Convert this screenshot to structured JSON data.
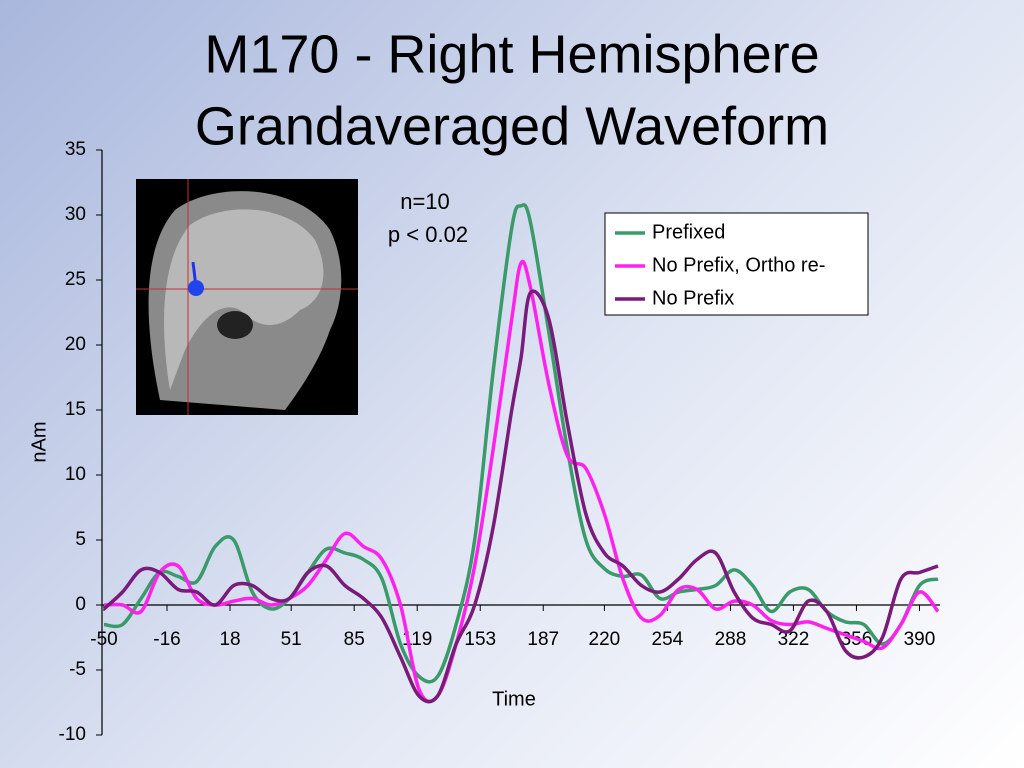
{
  "chart_data": {
    "type": "line",
    "title": [
      "M170 - Right Hemisphere",
      "Grandaveraged Waveform"
    ],
    "annotations": [
      "n=10",
      "p < 0.02"
    ],
    "x_label": "Time",
    "y_label": "nAm",
    "x": [
      -50,
      -40,
      -30,
      -20,
      -10,
      0,
      10,
      20,
      30,
      40,
      50,
      60,
      70,
      80,
      90,
      100,
      110,
      120,
      130,
      140,
      150,
      160,
      170,
      175,
      180,
      190,
      200,
      210,
      220,
      230,
      240,
      250,
      260,
      270,
      280,
      290,
      300,
      310,
      320,
      330,
      340,
      350,
      360,
      370,
      380,
      390,
      400
    ],
    "series": [
      {
        "name": "Prefixed",
        "color": "#3a9a6a",
        "values": [
          -1.5,
          -1.5,
          0.5,
          2.5,
          2.2,
          1.8,
          4.5,
          5,
          1,
          -0.3,
          0.5,
          2.5,
          4.3,
          4,
          3.5,
          2,
          -3,
          -5.5,
          -5.5,
          -1.5,
          5,
          18,
          29,
          30.7,
          29.5,
          21,
          12,
          5,
          2.8,
          2.2,
          2.3,
          0.5,
          1,
          1.2,
          1.5,
          2.7,
          1.5,
          -0.5,
          1,
          1.2,
          -0.5,
          -1.3,
          -1.5,
          -3,
          -1.5,
          1.5,
          2
        ]
      },
      {
        "name": "No Prefix, Ortho re-",
        "color": "#ff22ee",
        "values": [
          0,
          0,
          -0.5,
          2.5,
          3,
          0.5,
          0,
          0.3,
          0.5,
          0,
          0.5,
          1.5,
          3.5,
          5.5,
          4.5,
          3.5,
          0,
          -6.5,
          -7,
          -3,
          3,
          12,
          22,
          26.3,
          24.5,
          17,
          11.5,
          10.5,
          7,
          2,
          -1,
          -0.8,
          1.2,
          1.2,
          -0.3,
          0.3,
          0,
          -1.2,
          -1.5,
          -1.3,
          -1.8,
          -2.3,
          -2.8,
          -3.3,
          -1.5,
          1,
          -0.5
        ]
      },
      {
        "name": "No Prefix",
        "color": "#7a1a7a",
        "values": [
          -0.3,
          1,
          2.7,
          2.5,
          1.2,
          1,
          0,
          1.5,
          1.5,
          0.5,
          0.5,
          2.5,
          3,
          1.5,
          0.5,
          -1,
          -4,
          -7,
          -7,
          -3,
          0,
          6,
          15,
          19,
          24,
          22,
          14,
          7,
          4,
          3,
          1.5,
          1,
          2,
          3.5,
          4,
          1,
          -1,
          -1.5,
          -2,
          0.3,
          -0.5,
          -3.5,
          -4,
          -2.5,
          2,
          2.5,
          3
        ]
      }
    ],
    "xlim": [
      -50,
      400
    ],
    "xticks": [
      -50,
      -16,
      18,
      51,
      85,
      119,
      153,
      187,
      220,
      254,
      288,
      322,
      356,
      390
    ],
    "ylim": [
      -10,
      35
    ],
    "yticks": [
      -10,
      -5,
      0,
      5,
      10,
      15,
      20,
      25,
      30,
      35
    ],
    "grid": false,
    "legend": "upper right"
  }
}
